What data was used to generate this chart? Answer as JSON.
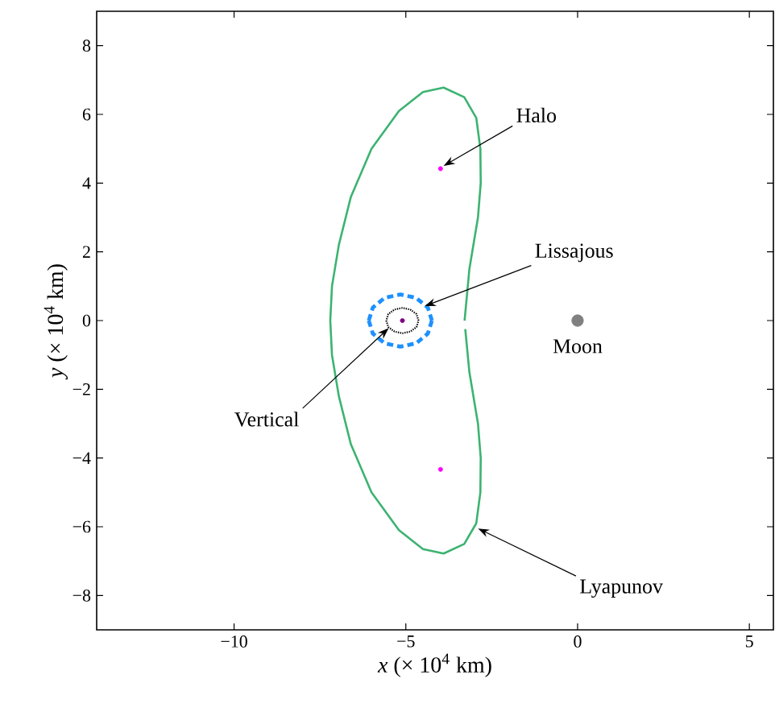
{
  "chart_data": {
    "type": "line",
    "xlabel": "*x* (× 10$^{4}$ km)",
    "ylabel": "*y* (× 10$^{4}$ km)",
    "xlim": [
      -14,
      5.7
    ],
    "ylim": [
      -9,
      9
    ],
    "xticks": [
      {
        "value": -10,
        "label": "−10"
      },
      {
        "value": -5,
        "label": "−5"
      },
      0,
      5
    ],
    "yticks": [
      {
        "value": -8,
        "label": "−8"
      },
      {
        "value": -6,
        "label": "−6"
      },
      {
        "value": -4,
        "label": "−4"
      },
      {
        "value": -2,
        "label": "−2"
      },
      0,
      2,
      4,
      6,
      8
    ],
    "grid": false,
    "series": [
      {
        "color": "#3cb371",
        "line_style": "solid",
        "x": [
          -3.29,
          -3.15,
          -2.9,
          -2.82,
          -2.83,
          -2.95,
          -3.3,
          -3.9,
          -4.5,
          -5.2,
          -6.0,
          -6.6,
          -6.95,
          -7.15,
          -7.2,
          -7.15,
          -6.95,
          -6.6,
          -6.0,
          -5.2,
          -4.5,
          -3.9,
          -3.3,
          -2.95,
          -2.83,
          -2.82,
          -2.9,
          -3.15,
          -3.27
        ],
        "values": [
          0,
          1.5,
          3.0,
          4.0,
          5.0,
          5.9,
          6.5,
          6.78,
          6.65,
          6.1,
          5.0,
          3.6,
          2.2,
          1.0,
          0,
          -1.0,
          -2.2,
          -3.6,
          -5.0,
          -6.1,
          -6.65,
          -6.78,
          -6.5,
          -5.9,
          -5.0,
          -4.0,
          -3.0,
          -1.5,
          -0.25
        ]
      },
      {
        "color": "#1e90ff",
        "line_style": "dashed",
        "x": [
          -4.24,
          -4.36,
          -4.7,
          -5.16,
          -5.62,
          -5.96,
          -6.08
        ],
        "values": [
          0,
          0.38,
          0.66,
          0.76,
          0.66,
          0.38,
          0
        ]
      },
      {
        "color": "#1e90ff",
        "line_style": "dashed",
        "x": [
          -6.08,
          -5.96,
          -5.62,
          -5.16,
          -4.7,
          -4.36,
          -4.24
        ],
        "values": [
          0,
          -0.38,
          -0.66,
          -0.76,
          -0.66,
          -0.38,
          0
        ]
      },
      {
        "color": "#000000",
        "line_style": "dotted",
        "x": [
          -4.63,
          -4.69,
          -4.87,
          -5.1,
          -5.33,
          -5.51,
          -5.57
        ],
        "values": [
          0,
          0.19,
          0.32,
          0.37,
          0.32,
          0.19,
          0
        ]
      },
      {
        "color": "#000000",
        "line_style": "dotted",
        "x": [
          -5.57,
          -5.51,
          -5.33,
          -5.1,
          -4.87,
          -4.69,
          -4.63
        ],
        "values": [
          0,
          -0.19,
          -0.32,
          -0.37,
          -0.32,
          -0.19,
          0
        ]
      },
      {
        "type": "scatter",
        "color": "#ff00ff",
        "x": [
          -3.99,
          -3.99
        ],
        "values": [
          4.42,
          -4.33
        ]
      },
      {
        "type": "scatter",
        "color": "#800080",
        "x": [
          -5.1
        ],
        "values": [
          0
        ]
      },
      {
        "type": "scatter",
        "color": "#808080",
        "x": [
          0
        ],
        "values": [
          0
        ]
      }
    ],
    "annotations": [
      {
        "text": "Halo",
        "x": -3.9,
        "y": 4.5
      },
      {
        "text": "Lissajous",
        "x": -4.45,
        "y": 0.42
      },
      {
        "text": "Vertical",
        "x": -5.5,
        "y": -0.22
      },
      {
        "text": "Lyapunov",
        "x": -2.9,
        "y": -6.05
      },
      {
        "text": "Moon",
        "x": 0,
        "y": 0
      }
    ]
  }
}
